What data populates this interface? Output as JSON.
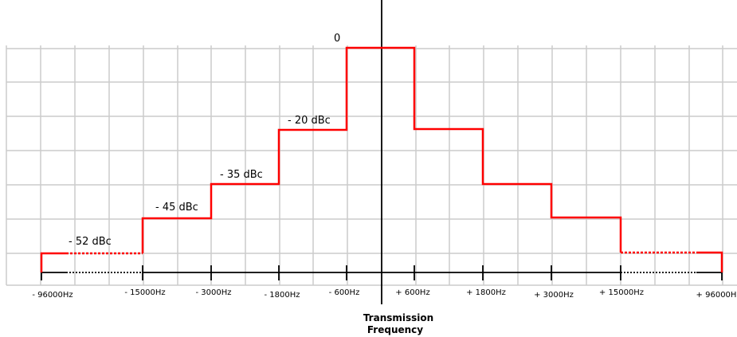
{
  "diagram": {
    "axis_title_line1": "Transmission",
    "axis_title_line2": "Frequency",
    "colors": {
      "mask": "#ff0000",
      "grid": "#cccccc",
      "axis": "#000000"
    },
    "tick_labels": [
      "- 96000Hz",
      "- 15000Hz",
      "- 3000Hz",
      "- 1800Hz",
      "- 600Hz",
      "+ 600Hz",
      "+ 1800Hz",
      "+ 3000Hz",
      "+ 15000Hz",
      "+ 96000H"
    ],
    "levels": [
      {
        "label": "0",
        "dbc": 0
      },
      {
        "label": "- 20 dBc",
        "dbc": -20
      },
      {
        "label": "- 35 dBc",
        "dbc": -35
      },
      {
        "label": "- 45 dBc",
        "dbc": -45
      },
      {
        "label": "- 52 dBc",
        "dbc": -52
      }
    ]
  }
}
